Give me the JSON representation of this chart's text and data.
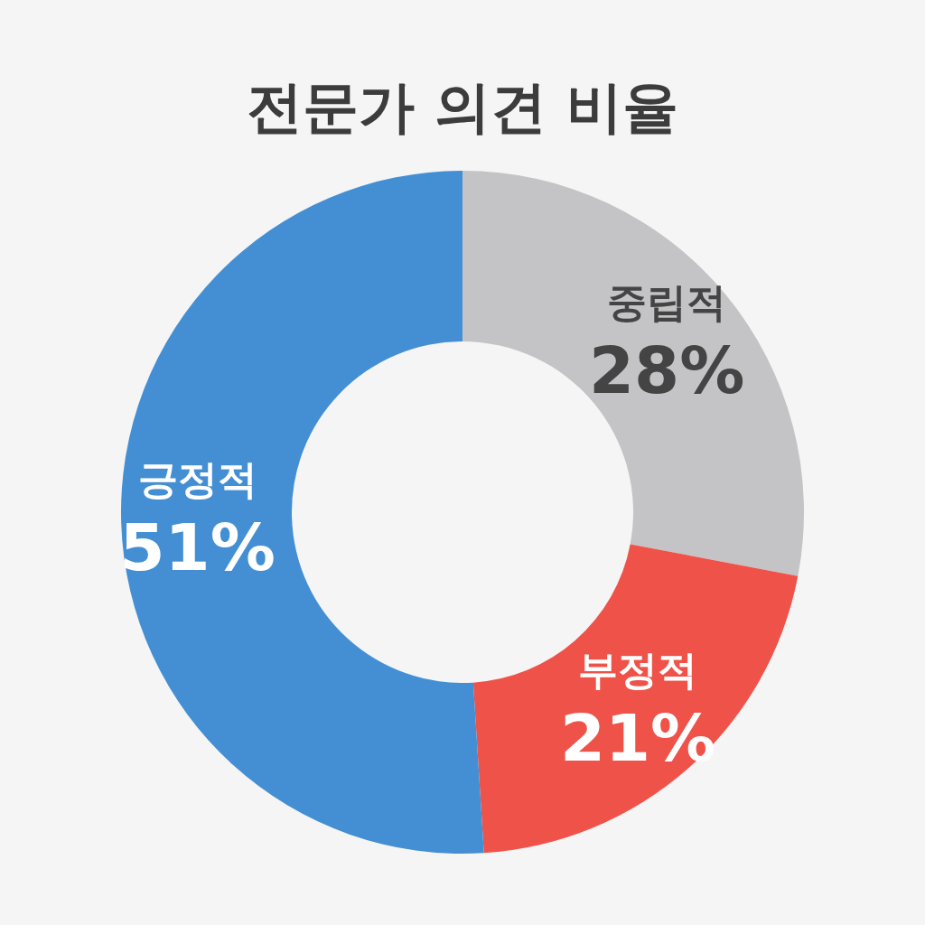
{
  "chart_data": {
    "type": "donut",
    "title": "전문가 의견 비율",
    "categories": [
      "중립적",
      "부정적",
      "긍정적"
    ],
    "values": [
      28,
      21,
      51
    ],
    "value_labels": [
      "28%",
      "21%",
      "51%"
    ],
    "colors": [
      "#c4c4c6",
      "#ef5249",
      "#448fd4"
    ]
  }
}
